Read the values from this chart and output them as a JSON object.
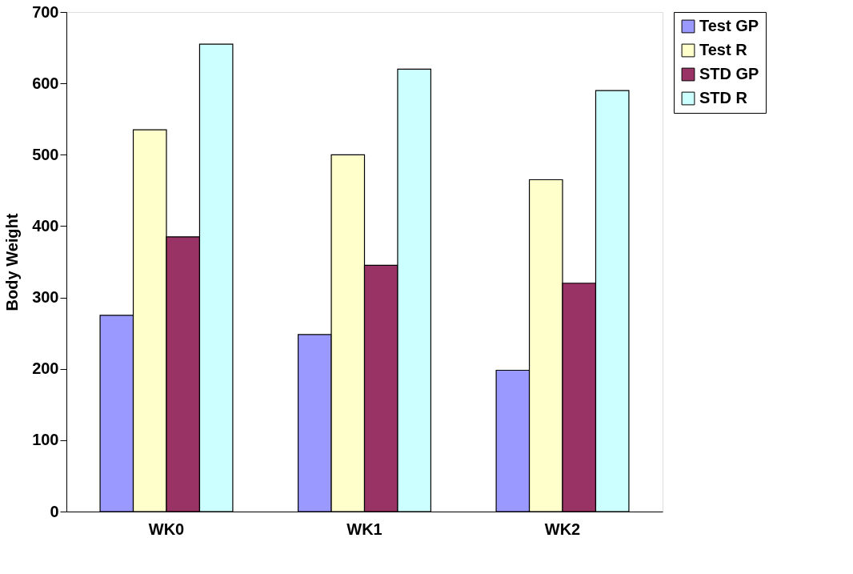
{
  "chart_data": {
    "type": "bar",
    "ylabel": "Body Weight",
    "categories": [
      "WK0",
      "WK1",
      "WK2"
    ],
    "series": [
      {
        "name": "Test GP",
        "color": "#9999ff",
        "values": [
          275,
          248,
          198
        ]
      },
      {
        "name": "Test R",
        "color": "#ffffcc",
        "values": [
          535,
          500,
          465
        ]
      },
      {
        "name": "STD GP",
        "color": "#993366",
        "values": [
          385,
          345,
          320
        ]
      },
      {
        "name": "STD R",
        "color": "#ccffff",
        "values": [
          655,
          620,
          590
        ]
      }
    ],
    "ylim": [
      0,
      700
    ],
    "yticks": [
      0,
      100,
      200,
      300,
      400,
      500,
      600,
      700
    ],
    "grid": false,
    "legend": "right"
  }
}
